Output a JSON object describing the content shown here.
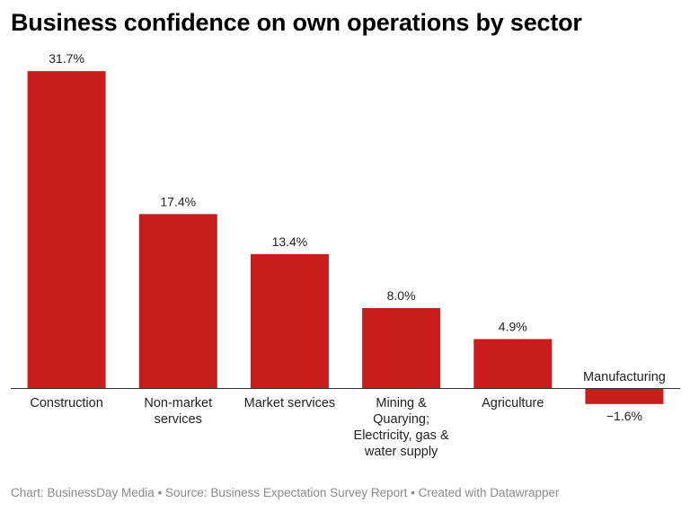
{
  "chart_data": {
    "type": "bar",
    "title": "Business confidence on own operations by sector",
    "categories": [
      [
        "Construction"
      ],
      [
        "Non-market",
        "services"
      ],
      [
        "Market services"
      ],
      [
        "Mining &",
        "Quarying;",
        "Electricity, gas &",
        "water supply"
      ],
      [
        "Agriculture"
      ],
      [
        "Manufacturing"
      ]
    ],
    "values": [
      31.7,
      17.4,
      13.4,
      8.0,
      4.9,
      -1.6
    ],
    "value_labels": [
      "31.7%",
      "17.4%",
      "13.4%",
      "8.0%",
      "4.9%",
      "−1.6%"
    ],
    "bar_color": "#c91c1c",
    "ylim": [
      -1.6,
      31.7
    ],
    "xlabel": "",
    "ylabel": ""
  },
  "footer": "Chart: BusinessDay Media • Source: Business Expectation Survey Report • Created with Datawrapper"
}
